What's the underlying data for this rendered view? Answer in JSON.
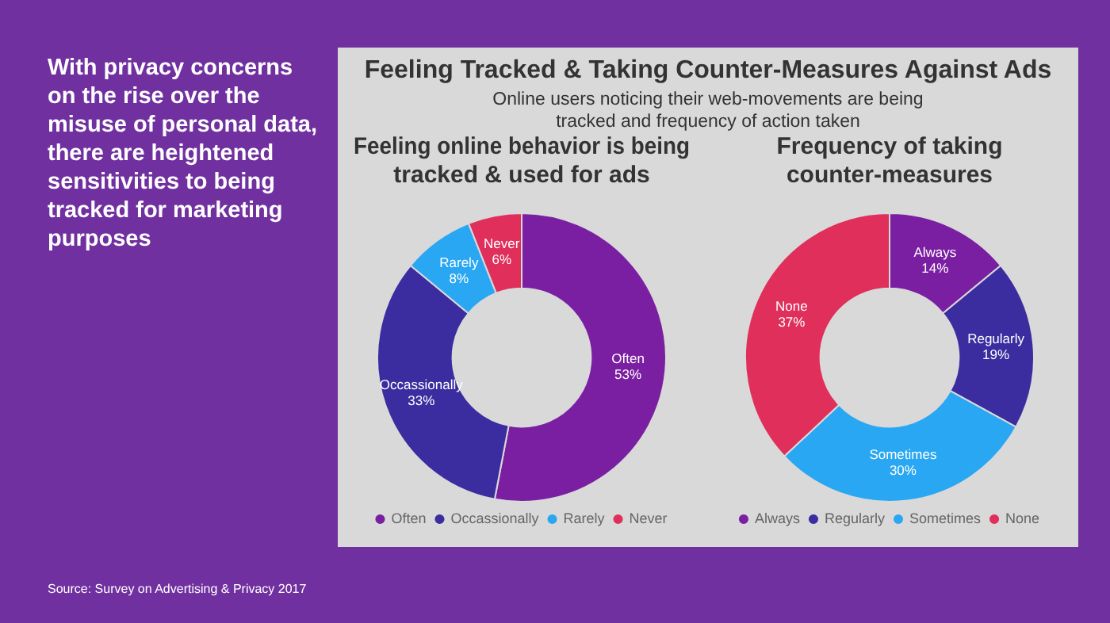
{
  "chart_data": [
    {
      "type": "donut",
      "title": "Feeling online behavior is being tracked & used for ads",
      "categories": [
        "Often",
        "Occassionally",
        "Rarely",
        "Never"
      ],
      "values": [
        53,
        33,
        8,
        6
      ],
      "value_labels": [
        "53%",
        "33%",
        "8%",
        "6%"
      ],
      "colors": [
        "#7b1fa2",
        "#3b2ca0",
        "#2aa7f2",
        "#e02f5b"
      ],
      "legend": "bottom",
      "annotations": [
        "Feeling Tracked & Taking Counter-Measures Against Ads",
        "Online users noticing their web-movements are being tracked and frequency of action taken",
        "With privacy concerns on the rise over the misuse of personal data, there are heightened sensitivities to being tracked for marketing purposes",
        "Source: Survey on Advertising & Privacy 2017"
      ]
    },
    {
      "type": "donut",
      "title": "Frequency of taking counter-measures",
      "categories": [
        "Always",
        "Regularly",
        "Sometimes",
        "None"
      ],
      "values": [
        14,
        19,
        30,
        37
      ],
      "value_labels": [
        "14%",
        "19%",
        "30%",
        "37%"
      ],
      "colors": [
        "#7b1fa2",
        "#3b2ca0",
        "#2aa7f2",
        "#e02f5b"
      ],
      "legend": "bottom"
    }
  ]
}
